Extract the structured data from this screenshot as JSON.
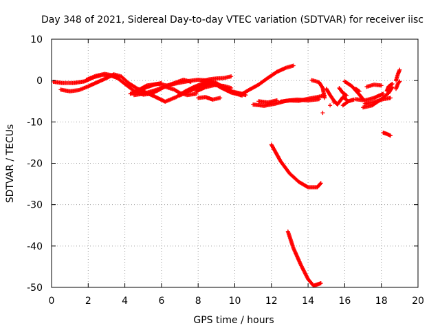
{
  "chart_data": {
    "type": "scatter",
    "title": "Day 348 of 2021, Sidereal Day-to-day VTEC variation (SDTVAR) for receiver iisc",
    "xlabel": "GPS time / hours",
    "ylabel": "SDTVAR / TECUs",
    "xlim": [
      0,
      20
    ],
    "ylim": [
      -50,
      10
    ],
    "xticks": [
      0,
      2,
      4,
      6,
      8,
      10,
      12,
      14,
      16,
      18,
      20
    ],
    "yticks": [
      -50,
      -40,
      -30,
      -20,
      -10,
      0,
      10
    ],
    "grid": true,
    "marker": "plus",
    "color": "#ff0000",
    "tracks": [
      {
        "name": "track-1",
        "points": [
          [
            0.1,
            -0.3
          ],
          [
            0.6,
            -0.6
          ],
          [
            1.2,
            -0.6
          ],
          [
            1.8,
            -0.2
          ],
          [
            2.3,
            0.8
          ],
          [
            2.8,
            1.4
          ],
          [
            3.3,
            1.1
          ],
          [
            3.6,
            0.6
          ],
          [
            4.0,
            -0.8
          ],
          [
            4.5,
            -2.5
          ],
          [
            5.0,
            -3.4
          ],
          [
            5.4,
            -3.2
          ],
          [
            5.8,
            -2.4
          ],
          [
            6.2,
            -1.4
          ],
          [
            6.7,
            -0.6
          ],
          [
            7.2,
            0.2
          ],
          [
            7.6,
            -0.3
          ]
        ]
      },
      {
        "name": "track-2",
        "points": [
          [
            0.5,
            -2.2
          ],
          [
            1.0,
            -2.6
          ],
          [
            1.5,
            -2.3
          ],
          [
            2.0,
            -1.4
          ],
          [
            2.5,
            -0.4
          ],
          [
            3.0,
            0.6
          ],
          [
            3.4,
            1.5
          ],
          [
            3.8,
            1.0
          ],
          [
            4.2,
            -0.6
          ],
          [
            4.7,
            -2.0
          ],
          [
            5.1,
            -2.8
          ],
          [
            5.6,
            -3.8
          ],
          [
            6.2,
            -5.1
          ],
          [
            6.8,
            -4.0
          ],
          [
            7.3,
            -2.6
          ],
          [
            7.8,
            -1.5
          ],
          [
            8.3,
            -0.6
          ],
          [
            8.8,
            -0.5
          ],
          [
            9.2,
            -1.6
          ],
          [
            9.8,
            -2.9
          ],
          [
            10.4,
            -3.6
          ]
        ]
      },
      {
        "name": "track-3",
        "points": [
          [
            1.9,
            0.2
          ],
          [
            2.4,
            1.1
          ],
          [
            2.9,
            1.6
          ],
          [
            3.3,
            1.3
          ],
          [
            3.6,
            0.9
          ]
        ]
      },
      {
        "name": "track-4",
        "points": [
          [
            4.3,
            -3.2
          ],
          [
            4.7,
            -2.6
          ],
          [
            5.2,
            -1.6
          ],
          [
            5.6,
            -1.0
          ],
          [
            6.0,
            -0.6
          ]
        ]
      },
      {
        "name": "track-5",
        "points": [
          [
            4.5,
            -3.5
          ],
          [
            5.0,
            -3.2
          ],
          [
            5.6,
            -2.4
          ],
          [
            6.2,
            -1.5
          ],
          [
            6.7,
            -2.2
          ],
          [
            7.0,
            -3.0
          ],
          [
            7.4,
            -3.5
          ],
          [
            7.9,
            -3.2
          ]
        ]
      },
      {
        "name": "track-6",
        "points": [
          [
            4.7,
            -2.4
          ],
          [
            5.2,
            -1.2
          ],
          [
            5.8,
            -0.8
          ],
          [
            6.3,
            -1.2
          ],
          [
            6.9,
            -0.6
          ],
          [
            7.5,
            -0.1
          ],
          [
            8.0,
            0.2
          ],
          [
            8.5,
            0.0
          ],
          [
            9.0,
            -0.6
          ],
          [
            9.5,
            -2.0
          ],
          [
            10.0,
            -3.0
          ],
          [
            10.6,
            -3.5
          ]
        ]
      },
      {
        "name": "track-7",
        "points": [
          [
            7.0,
            -3.6
          ],
          [
            7.6,
            -2.4
          ],
          [
            8.1,
            -1.4
          ],
          [
            8.6,
            -0.7
          ],
          [
            9.2,
            -1.2
          ],
          [
            9.8,
            -2.6
          ],
          [
            10.4,
            -3.2
          ]
        ]
      },
      {
        "name": "track-8",
        "points": [
          [
            7.9,
            -2.6
          ],
          [
            8.4,
            -1.6
          ],
          [
            8.9,
            -1.1
          ],
          [
            9.4,
            -1.3
          ],
          [
            9.8,
            -1.8
          ]
        ]
      },
      {
        "name": "track-9",
        "points": [
          [
            8.0,
            -4.2
          ],
          [
            8.4,
            -4.0
          ],
          [
            8.8,
            -4.6
          ],
          [
            9.2,
            -4.2
          ]
        ]
      },
      {
        "name": "track-10",
        "points": [
          [
            8.2,
            -0.2
          ],
          [
            8.6,
            0.3
          ],
          [
            9.0,
            0.5
          ],
          [
            9.4,
            0.6
          ],
          [
            9.8,
            1.0
          ]
        ]
      },
      {
        "name": "track-11",
        "points": [
          [
            10.3,
            -3.5
          ],
          [
            10.8,
            -2.2
          ],
          [
            11.3,
            -1.0
          ],
          [
            11.8,
            0.6
          ],
          [
            12.3,
            2.1
          ],
          [
            12.8,
            3.1
          ],
          [
            13.2,
            3.6
          ]
        ]
      },
      {
        "name": "track-12",
        "points": [
          [
            11.0,
            -5.8
          ],
          [
            11.6,
            -6.1
          ],
          [
            12.2,
            -5.6
          ],
          [
            12.8,
            -4.9
          ],
          [
            13.4,
            -4.6
          ],
          [
            14.0,
            -4.8
          ],
          [
            14.6,
            -4.5
          ]
        ]
      },
      {
        "name": "track-13",
        "points": [
          [
            11.3,
            -5.0
          ],
          [
            11.8,
            -5.3
          ],
          [
            12.3,
            -4.8
          ]
        ]
      },
      {
        "name": "track-14",
        "points": [
          [
            12.5,
            -5.1
          ],
          [
            13.0,
            -4.8
          ],
          [
            13.5,
            -4.9
          ],
          [
            14.0,
            -4.4
          ],
          [
            14.5,
            -4.0
          ],
          [
            14.9,
            -3.6
          ]
        ]
      },
      {
        "name": "track-15",
        "points": [
          [
            14.2,
            0.1
          ],
          [
            14.6,
            -0.4
          ],
          [
            14.8,
            -1.8
          ],
          [
            14.9,
            -4.2
          ]
        ]
      },
      {
        "name": "track-16",
        "points": [
          [
            12.0,
            -15.5
          ],
          [
            12.5,
            -19.5
          ],
          [
            13.0,
            -22.5
          ],
          [
            13.5,
            -24.5
          ],
          [
            14.0,
            -25.8
          ],
          [
            14.5,
            -25.8
          ],
          [
            14.7,
            -24.8
          ]
        ]
      },
      {
        "name": "track-17",
        "points": [
          [
            12.9,
            -36.5
          ],
          [
            13.2,
            -40.5
          ],
          [
            13.6,
            -44.5
          ],
          [
            14.0,
            -48.0
          ],
          [
            14.3,
            -49.6
          ],
          [
            14.7,
            -49.0
          ]
        ]
      },
      {
        "name": "track-18",
        "points": [
          [
            15.0,
            -2.0
          ],
          [
            15.2,
            -3.5
          ],
          [
            15.4,
            -4.8
          ],
          [
            15.6,
            -5.8
          ],
          [
            15.9,
            -4.0
          ],
          [
            16.1,
            -4.6
          ]
        ]
      },
      {
        "name": "track-19",
        "points": [
          [
            15.7,
            -1.8
          ],
          [
            15.9,
            -3.0
          ],
          [
            16.1,
            -3.6
          ]
        ]
      },
      {
        "name": "track-20",
        "points": [
          [
            15.9,
            -6.0
          ],
          [
            16.2,
            -5.0
          ],
          [
            16.5,
            -4.6
          ]
        ]
      },
      {
        "name": "track-21",
        "points": [
          [
            16.0,
            -0.2
          ],
          [
            16.4,
            -1.4
          ],
          [
            16.8,
            -3.4
          ],
          [
            17.0,
            -4.5
          ]
        ]
      },
      {
        "name": "track-22",
        "points": [
          [
            16.6,
            -2.0
          ],
          [
            16.8,
            -2.6
          ]
        ]
      },
      {
        "name": "track-23",
        "points": [
          [
            17.0,
            -6.5
          ],
          [
            17.5,
            -6.0
          ],
          [
            18.0,
            -4.5
          ],
          [
            18.4,
            -3.0
          ],
          [
            18.6,
            -1.6
          ]
        ]
      },
      {
        "name": "track-24",
        "points": [
          [
            16.6,
            -4.5
          ],
          [
            17.1,
            -4.8
          ],
          [
            17.6,
            -4.2
          ],
          [
            18.1,
            -3.2
          ]
        ]
      },
      {
        "name": "track-25",
        "points": [
          [
            17.1,
            -5.6
          ],
          [
            17.6,
            -5.2
          ],
          [
            18.1,
            -4.5
          ],
          [
            18.5,
            -4.2
          ]
        ]
      },
      {
        "name": "track-26",
        "points": [
          [
            17.2,
            -1.5
          ],
          [
            17.6,
            -1.0
          ],
          [
            18.0,
            -1.2
          ]
        ]
      },
      {
        "name": "track-27",
        "points": [
          [
            18.3,
            -2.5
          ],
          [
            18.4,
            -1.4
          ],
          [
            18.6,
            -0.8
          ]
        ]
      },
      {
        "name": "track-28",
        "points": [
          [
            18.1,
            -12.6
          ],
          [
            18.3,
            -12.9
          ],
          [
            18.5,
            -13.3
          ]
        ]
      },
      {
        "name": "track-29",
        "points": [
          [
            18.8,
            0.0
          ],
          [
            18.9,
            1.5
          ],
          [
            19.0,
            2.6
          ]
        ]
      },
      {
        "name": "track-30",
        "points": [
          [
            18.8,
            -2.0
          ],
          [
            18.9,
            -0.8
          ],
          [
            19.0,
            -0.2
          ]
        ]
      }
    ],
    "isolated_points": [
      [
        14.8,
        -7.8
      ],
      [
        15.2,
        -6.0
      ],
      [
        15.4,
        -5.2
      ]
    ]
  }
}
